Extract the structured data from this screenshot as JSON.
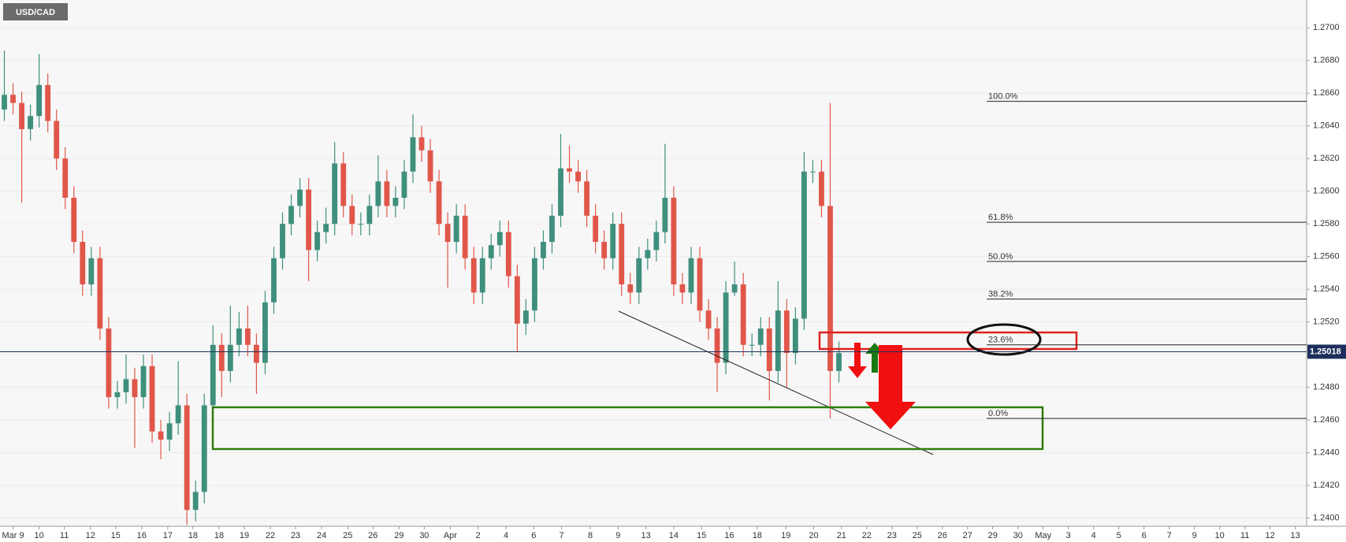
{
  "chart_data": {
    "type": "candlestick",
    "title": "USD/CAD",
    "up_color": "#3f8f7d",
    "down_color": "#e0574a",
    "grid": true,
    "ylim": [
      1.2395,
      1.2717
    ],
    "yticks": [
      {
        "value": 1.24,
        "label": "1.2400"
      },
      {
        "value": 1.242,
        "label": "1.2420"
      },
      {
        "value": 1.244,
        "label": "1.2440"
      },
      {
        "value": 1.246,
        "label": "1.2460"
      },
      {
        "value": 1.248,
        "label": "1.2480"
      },
      {
        "value": 1.25,
        "label": "1.2500"
      },
      {
        "value": 1.252,
        "label": "1.2520"
      },
      {
        "value": 1.254,
        "label": "1.2540"
      },
      {
        "value": 1.256,
        "label": "1.2560"
      },
      {
        "value": 1.258,
        "label": "1.2580"
      },
      {
        "value": 1.26,
        "label": "1.2600"
      },
      {
        "value": 1.262,
        "label": "1.2620"
      },
      {
        "value": 1.264,
        "label": "1.2640"
      },
      {
        "value": 1.266,
        "label": "1.2660"
      },
      {
        "value": 1.268,
        "label": "1.2680"
      },
      {
        "value": 1.27,
        "label": "1.2700"
      }
    ],
    "xlim": [
      0,
      150.3
    ],
    "xticks": [
      {
        "value": 1.5,
        "label": "Mar 9"
      },
      {
        "value": 4.5,
        "label": "10"
      },
      {
        "value": 7.4,
        "label": "11"
      },
      {
        "value": 10.4,
        "label": "12"
      },
      {
        "value": 13.3,
        "label": "15"
      },
      {
        "value": 16.3,
        "label": "16"
      },
      {
        "value": 19.3,
        "label": "17"
      },
      {
        "value": 22.2,
        "label": "18"
      },
      {
        "value": 25.2,
        "label": "18"
      },
      {
        "value": 28.1,
        "label": "19"
      },
      {
        "value": 31.1,
        "label": "22"
      },
      {
        "value": 34.0,
        "label": "23"
      },
      {
        "value": 37.0,
        "label": "24"
      },
      {
        "value": 40.0,
        "label": "25"
      },
      {
        "value": 42.9,
        "label": "26"
      },
      {
        "value": 45.9,
        "label": "29"
      },
      {
        "value": 48.8,
        "label": "30"
      },
      {
        "value": 51.8,
        "label": "Apr"
      },
      {
        "value": 55.0,
        "label": "2"
      },
      {
        "value": 58.2,
        "label": "4"
      },
      {
        "value": 61.4,
        "label": "6"
      },
      {
        "value": 64.6,
        "label": "7"
      },
      {
        "value": 67.9,
        "label": "8"
      },
      {
        "value": 71.1,
        "label": "9"
      },
      {
        "value": 74.3,
        "label": "13"
      },
      {
        "value": 77.5,
        "label": "14"
      },
      {
        "value": 80.7,
        "label": "15"
      },
      {
        "value": 83.9,
        "label": "16"
      },
      {
        "value": 87.1,
        "label": "18"
      },
      {
        "value": 90.4,
        "label": "19"
      },
      {
        "value": 93.6,
        "label": "20"
      },
      {
        "value": 96.8,
        "label": "21"
      },
      {
        "value": 99.7,
        "label": "22"
      },
      {
        "value": 102.6,
        "label": "23"
      },
      {
        "value": 105.5,
        "label": "25"
      },
      {
        "value": 108.4,
        "label": "26"
      },
      {
        "value": 111.3,
        "label": "27"
      },
      {
        "value": 114.2,
        "label": "29"
      },
      {
        "value": 117.1,
        "label": "30"
      },
      {
        "value": 120.0,
        "label": "May"
      },
      {
        "value": 122.9,
        "label": "3"
      },
      {
        "value": 125.8,
        "label": "4"
      },
      {
        "value": 128.7,
        "label": "5"
      },
      {
        "value": 131.6,
        "label": "6"
      },
      {
        "value": 134.5,
        "label": "7"
      },
      {
        "value": 137.4,
        "label": "9"
      },
      {
        "value": 140.3,
        "label": "10"
      },
      {
        "value": 143.2,
        "label": "11"
      },
      {
        "value": 146.1,
        "label": "12"
      },
      {
        "value": 149.0,
        "label": "13"
      }
    ],
    "open": [
      1.265,
      1.2659,
      1.2654,
      1.2638,
      1.2646,
      1.2665,
      1.2643,
      1.262,
      1.2596,
      1.2569,
      1.2543,
      1.2559,
      1.2516,
      1.2474,
      1.2477,
      1.2485,
      1.2474,
      1.2493,
      1.2453,
      1.2448,
      1.2458,
      1.2469,
      1.2405,
      1.2416,
      1.2469,
      1.2506,
      1.249,
      1.2506,
      1.2516,
      1.2506,
      1.2495,
      1.2532,
      1.2559,
      1.258,
      1.2591,
      1.2601,
      1.2564,
      1.2575,
      1.258,
      1.2617,
      1.2591,
      1.258,
      1.258,
      1.2591,
      1.2606,
      1.2591,
      1.2596,
      1.2612,
      1.2633,
      1.2625,
      1.2606,
      1.258,
      1.2569,
      1.2585,
      1.2559,
      1.2538,
      1.2559,
      1.2567,
      1.2575,
      1.2548,
      1.2519,
      1.2527,
      1.2559,
      1.2569,
      1.2585,
      1.2614,
      1.2612,
      1.2606,
      1.2585,
      1.2569,
      1.2559,
      1.258,
      1.2543,
      1.2538,
      1.2559,
      1.2564,
      1.2575,
      1.2596,
      1.2543,
      1.2538,
      1.2559,
      1.2527,
      1.2516,
      1.2495,
      1.2538,
      1.2543,
      1.2506,
      1.2506,
      1.2516,
      1.249,
      1.2527,
      1.2501,
      1.2522,
      1.2612,
      1.2612,
      1.2591,
      1.249
    ],
    "high": [
      1.2686,
      1.2666,
      1.2661,
      1.2653,
      1.2684,
      1.2672,
      1.265,
      1.2627,
      1.2603,
      1.2576,
      1.2566,
      1.2566,
      1.2523,
      1.2484,
      1.25,
      1.2492,
      1.25,
      1.25,
      1.246,
      1.2465,
      1.2496,
      1.2476,
      1.2423,
      1.2476,
      1.2518,
      1.2513,
      1.253,
      1.2526,
      1.253,
      1.2513,
      1.2539,
      1.2566,
      1.2587,
      1.2598,
      1.2608,
      1.2608,
      1.2582,
      1.259,
      1.263,
      1.2624,
      1.2598,
      1.2587,
      1.2598,
      1.2622,
      1.2613,
      1.2603,
      1.2619,
      1.2647,
      1.264,
      1.2632,
      1.2613,
      1.2587,
      1.2592,
      1.2592,
      1.2566,
      1.2566,
      1.2574,
      1.2582,
      1.2582,
      1.2555,
      1.2534,
      1.2566,
      1.2576,
      1.2592,
      1.2635,
      1.2628,
      1.2619,
      1.2613,
      1.2592,
      1.2576,
      1.2587,
      1.2587,
      1.255,
      1.2566,
      1.2571,
      1.2582,
      1.2629,
      1.2603,
      1.255,
      1.2566,
      1.2566,
      1.2534,
      1.2523,
      1.2545,
      1.2557,
      1.255,
      1.2513,
      1.2523,
      1.2523,
      1.2545,
      1.2534,
      1.2529,
      1.2624,
      1.2619,
      1.2619,
      1.2654,
      1.2508
    ],
    "low": [
      1.2643,
      1.2647,
      1.2593,
      1.2631,
      1.2639,
      1.2636,
      1.2613,
      1.2589,
      1.2562,
      1.2536,
      1.2536,
      1.2509,
      1.2467,
      1.2467,
      1.247,
      1.2443,
      1.2467,
      1.2446,
      1.2436,
      1.2441,
      1.2451,
      1.2396,
      1.2398,
      1.2409,
      1.2462,
      1.2474,
      1.2483,
      1.2499,
      1.2499,
      1.2476,
      1.2488,
      1.2525,
      1.2552,
      1.2573,
      1.2584,
      1.2545,
      1.2557,
      1.2568,
      1.2573,
      1.2584,
      1.2573,
      1.2573,
      1.2573,
      1.2584,
      1.2584,
      1.2584,
      1.2589,
      1.2605,
      1.2618,
      1.2599,
      1.2573,
      1.2541,
      1.2562,
      1.2552,
      1.2531,
      1.2531,
      1.2552,
      1.256,
      1.2541,
      1.2502,
      1.2512,
      1.252,
      1.2552,
      1.2562,
      1.2578,
      1.2605,
      1.2599,
      1.2578,
      1.2562,
      1.2552,
      1.2552,
      1.2536,
      1.2531,
      1.2531,
      1.2552,
      1.2557,
      1.2568,
      1.2536,
      1.2531,
      1.2531,
      1.252,
      1.2509,
      1.2477,
      1.2488,
      1.2536,
      1.2499,
      1.2499,
      1.2499,
      1.2472,
      1.2483,
      1.248,
      1.2494,
      1.2515,
      1.2605,
      1.2584,
      1.2461,
      1.2483
    ],
    "close": [
      1.2659,
      1.2654,
      1.2638,
      1.2646,
      1.2665,
      1.2643,
      1.262,
      1.2596,
      1.2569,
      1.2543,
      1.2559,
      1.2516,
      1.2474,
      1.2477,
      1.2485,
      1.2474,
      1.2493,
      1.2453,
      1.2448,
      1.2458,
      1.2469,
      1.2405,
      1.2416,
      1.2469,
      1.2506,
      1.249,
      1.2506,
      1.2516,
      1.2506,
      1.2495,
      1.2532,
      1.2559,
      1.258,
      1.2591,
      1.2601,
      1.2564,
      1.2575,
      1.258,
      1.2617,
      1.2591,
      1.258,
      1.258,
      1.2591,
      1.2606,
      1.2591,
      1.2596,
      1.2612,
      1.2633,
      1.2625,
      1.2606,
      1.258,
      1.2569,
      1.2585,
      1.2559,
      1.2538,
      1.2559,
      1.2567,
      1.2575,
      1.2548,
      1.2519,
      1.2527,
      1.2559,
      1.2569,
      1.2585,
      1.2614,
      1.2612,
      1.2606,
      1.2585,
      1.2569,
      1.2559,
      1.258,
      1.2543,
      1.2538,
      1.2559,
      1.2564,
      1.2575,
      1.2596,
      1.2543,
      1.2538,
      1.2559,
      1.2527,
      1.2516,
      1.2495,
      1.2538,
      1.2543,
      1.2506,
      1.2506,
      1.2516,
      1.249,
      1.2527,
      1.2501,
      1.2522,
      1.2612,
      1.2612,
      1.2591,
      1.249,
      1.2501
    ],
    "fib_levels": [
      {
        "label": "100.0%",
        "value": 1.2655
      },
      {
        "label": "61.8%",
        "value": 1.2581
      },
      {
        "label": "50.0%",
        "value": 1.2557
      },
      {
        "label": "38.2%",
        "value": 1.2534
      },
      {
        "label": "23.6%",
        "value": 1.2506
      },
      {
        "label": "0.0%",
        "value": 1.2461
      }
    ],
    "fib_start": 113.5,
    "last_price": 1.25018
  }
}
